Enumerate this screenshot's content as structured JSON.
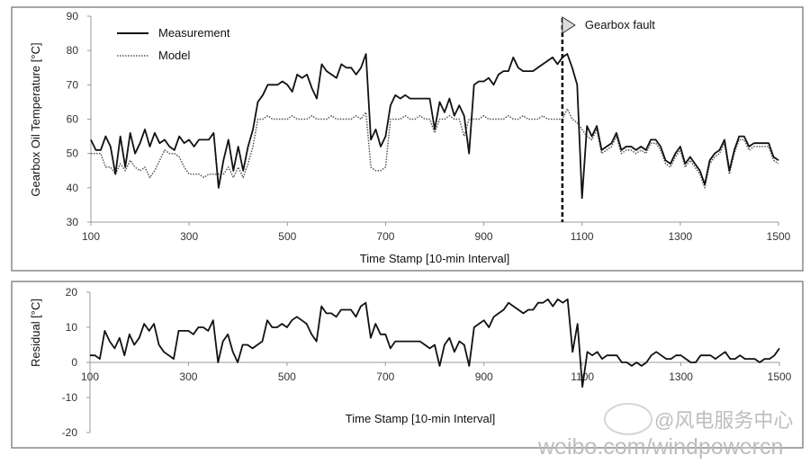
{
  "chart_data": [
    {
      "type": "line",
      "title": "",
      "xlabel": "Time Stamp [10-min Interval]",
      "ylabel": "Gearbox Oil Temperature [°C]",
      "xlim": [
        100,
        1500
      ],
      "ylim": [
        30,
        90
      ],
      "xticks": [
        100,
        300,
        500,
        700,
        900,
        1100,
        1300,
        1500
      ],
      "yticks": [
        30,
        40,
        50,
        60,
        70,
        80,
        90
      ],
      "legend_position": "top-left",
      "annotation": {
        "label": "Gearbox fault",
        "x": 1060
      },
      "x_start": 100,
      "x_step": 10,
      "series": [
        {
          "name": "Measurement",
          "style": "solid",
          "values": [
            54,
            51,
            51,
            55,
            52,
            44,
            55,
            46,
            56,
            50,
            53,
            57,
            52,
            56,
            53,
            54,
            52,
            51,
            55,
            53,
            54,
            52,
            54,
            54,
            54,
            56,
            40,
            48,
            54,
            45,
            52,
            45,
            52,
            57,
            65,
            67,
            70,
            70,
            70,
            71,
            70,
            68,
            73,
            72,
            73,
            69,
            66,
            76,
            74,
            73,
            72,
            76,
            75,
            75,
            73,
            75,
            79,
            54,
            57,
            52,
            55,
            64,
            67,
            66,
            67,
            66,
            66,
            66,
            66,
            66,
            57,
            65,
            62,
            66,
            61,
            64,
            61,
            50,
            70,
            71,
            71,
            72,
            70,
            73,
            74,
            74,
            78,
            75,
            74,
            74,
            74,
            75,
            76,
            77,
            78,
            76,
            78,
            79,
            75,
            70,
            37,
            58,
            55,
            58,
            51,
            52,
            53,
            56,
            51,
            52,
            52,
            51,
            52,
            51,
            54,
            54,
            52,
            48,
            47,
            50,
            52,
            47,
            49,
            47,
            45,
            41,
            48,
            50,
            51,
            54,
            45,
            51,
            55,
            55,
            52,
            53,
            53,
            53,
            53,
            49,
            48
          ]
        },
        {
          "name": "Model",
          "style": "dotted",
          "values": [
            50,
            50,
            50,
            46,
            46,
            44,
            47,
            45,
            48,
            46,
            45,
            46,
            43,
            45,
            48,
            51,
            50,
            50,
            49,
            46,
            44,
            44,
            44,
            43,
            44,
            44,
            44,
            44,
            46,
            43,
            46,
            43,
            47,
            52,
            60,
            60,
            61,
            60,
            60,
            60,
            60,
            61,
            60,
            60,
            60,
            61,
            60,
            60,
            60,
            61,
            60,
            60,
            60,
            60,
            61,
            60,
            62,
            46,
            45,
            45,
            46,
            60,
            60,
            60,
            61,
            60,
            60,
            61,
            60,
            60,
            56,
            60,
            60,
            61,
            60,
            60,
            55,
            60,
            60,
            60,
            61,
            60,
            60,
            60,
            60,
            61,
            60,
            60,
            61,
            60,
            60,
            60,
            61,
            60,
            60,
            60,
            60,
            63,
            60,
            59,
            57,
            55,
            54,
            57,
            50,
            51,
            52,
            55,
            50,
            51,
            51,
            50,
            51,
            50,
            53,
            53,
            51,
            47,
            46,
            49,
            51,
            46,
            48,
            46,
            44,
            40,
            47,
            49,
            50,
            53,
            44,
            50,
            54,
            54,
            51,
            52,
            52,
            52,
            52,
            48,
            47
          ]
        }
      ]
    },
    {
      "type": "line",
      "title": "",
      "xlabel": "Time Stamp [10-min Interval]",
      "ylabel": "Residual [°C]",
      "xlim": [
        100,
        1500
      ],
      "ylim": [
        -20,
        20
      ],
      "xticks": [
        100,
        300,
        500,
        700,
        900,
        1100,
        1300,
        1500
      ],
      "yticks": [
        -20,
        -10,
        0,
        10,
        20
      ],
      "x_start": 100,
      "x_step": 10,
      "series": [
        {
          "name": "Residual",
          "style": "solid",
          "values": [
            2,
            2,
            1,
            9,
            6,
            4,
            7,
            2,
            8,
            5,
            7,
            11,
            9,
            11,
            5,
            3,
            2,
            1,
            9,
            9,
            9,
            8,
            10,
            10,
            9,
            12,
            0,
            6,
            8,
            3,
            0,
            5,
            5,
            4,
            5,
            6,
            12,
            10,
            10,
            11,
            10,
            12,
            13,
            12,
            11,
            8,
            6,
            16,
            14,
            14,
            13,
            15,
            15,
            15,
            13,
            16,
            17,
            7,
            11,
            8,
            8,
            4,
            6,
            6,
            6,
            6,
            6,
            6,
            5,
            4,
            5,
            -1,
            5,
            7,
            3,
            6,
            5,
            -1,
            10,
            11,
            12,
            10,
            13,
            14,
            15,
            17,
            16,
            15,
            14,
            15,
            15,
            17,
            17,
            18,
            16,
            18,
            17,
            18,
            3,
            11,
            -7,
            3,
            2,
            3,
            1,
            2,
            2,
            2,
            0,
            0,
            -1,
            0,
            -1,
            0,
            2,
            3,
            2,
            1,
            1,
            2,
            2,
            1,
            0,
            0,
            2,
            2,
            2,
            1,
            2,
            3,
            1,
            1,
            2,
            1,
            1,
            1,
            0,
            1,
            1,
            2,
            4
          ]
        }
      ]
    }
  ],
  "watermark": {
    "handle": "@风电服务中心",
    "url": "weibo.com/windpowercn"
  },
  "colors": {
    "line": "#111111",
    "model": "#555555",
    "axis": "#999999",
    "frame": "#888888"
  }
}
